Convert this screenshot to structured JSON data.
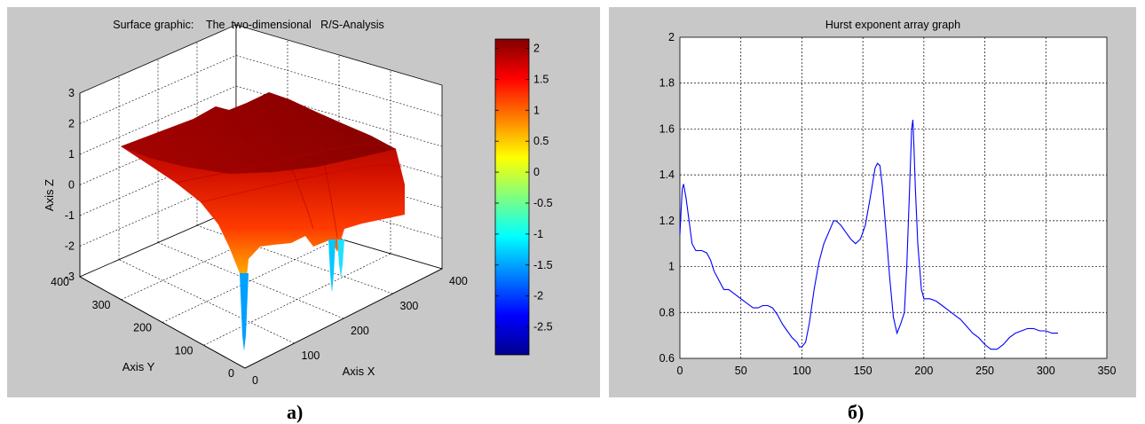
{
  "figures": {
    "a": {
      "caption": "а)"
    },
    "b": {
      "caption": "б)"
    }
  },
  "chart_data": [
    {
      "type": "surface",
      "title": "Surface graphic:    The  two-dimensional   R/S-Analysis",
      "xlabel": "Axis X",
      "ylabel": "Axis Y",
      "zlabel": "Axis Z",
      "xlim": [
        0,
        400
      ],
      "ylim": [
        0,
        400
      ],
      "zlim": [
        -3,
        3
      ],
      "x_ticks": [
        "0",
        "100",
        "200",
        "300",
        "400"
      ],
      "y_ticks": [
        "0",
        "100",
        "200",
        "300",
        "400"
      ],
      "z_ticks": [
        "3",
        "2",
        "1",
        "0",
        "-1",
        "-2",
        "-3"
      ],
      "colormap": "jet",
      "colorbar": {
        "range": [
          -2.95,
          2.15
        ],
        "ticks": [
          "2",
          "1.5",
          "1",
          "0.5",
          "0",
          "-0.5",
          "-1",
          "-1.5",
          "-2",
          "-2.5"
        ]
      },
      "grid": true,
      "colors": {
        "background": "#c8c8c8",
        "axes": "#ffffff"
      }
    },
    {
      "type": "line",
      "title": "Hurst exponent array graph",
      "xlabel": "",
      "ylabel": "",
      "xlim": [
        0,
        350
      ],
      "ylim": [
        0.6,
        2
      ],
      "x_ticks": [
        "0",
        "50",
        "100",
        "150",
        "200",
        "250",
        "300",
        "350"
      ],
      "y_ticks": [
        "2",
        "1.8",
        "1.6",
        "1.4",
        "1.2",
        "1",
        "0.8",
        "0.6"
      ],
      "grid": true,
      "grid_style": "dotted",
      "colors": {
        "line": "#0000ff",
        "background": "#c8c8c8",
        "axes": "#ffffff"
      },
      "series": [
        {
          "x": [
            0,
            1,
            2,
            3,
            5,
            8,
            10,
            13,
            18,
            22,
            25,
            28,
            32,
            36,
            40,
            45,
            50,
            55,
            60,
            64,
            68,
            72,
            76,
            80,
            84,
            88,
            92,
            96,
            98,
            100,
            103,
            106,
            110,
            114,
            118,
            122,
            126,
            128,
            132,
            136,
            140,
            144,
            148,
            152,
            156,
            160,
            162,
            164,
            166,
            169,
            172,
            175,
            178,
            181,
            184,
            186,
            188,
            190,
            191,
            192,
            193,
            195,
            198,
            200,
            205,
            210,
            215,
            220,
            225,
            230,
            235,
            240,
            245,
            250,
            255,
            260,
            265,
            270,
            275,
            280,
            285,
            290,
            295,
            300,
            305,
            310
          ],
          "y": [
            1.14,
            1.25,
            1.34,
            1.36,
            1.3,
            1.18,
            1.1,
            1.07,
            1.07,
            1.06,
            1.03,
            0.98,
            0.94,
            0.9,
            0.9,
            0.88,
            0.86,
            0.84,
            0.82,
            0.82,
            0.83,
            0.83,
            0.82,
            0.79,
            0.75,
            0.72,
            0.69,
            0.67,
            0.65,
            0.65,
            0.67,
            0.75,
            0.9,
            1.02,
            1.1,
            1.15,
            1.2,
            1.2,
            1.18,
            1.15,
            1.12,
            1.1,
            1.12,
            1.18,
            1.3,
            1.43,
            1.45,
            1.44,
            1.35,
            1.15,
            0.95,
            0.78,
            0.71,
            0.75,
            0.8,
            1.0,
            1.3,
            1.6,
            1.64,
            1.5,
            1.35,
            1.1,
            0.9,
            0.86,
            0.86,
            0.85,
            0.83,
            0.81,
            0.79,
            0.77,
            0.74,
            0.71,
            0.69,
            0.66,
            0.64,
            0.64,
            0.66,
            0.69,
            0.71,
            0.72,
            0.73,
            0.73,
            0.72,
            0.72,
            0.71,
            0.71
          ]
        }
      ]
    }
  ]
}
